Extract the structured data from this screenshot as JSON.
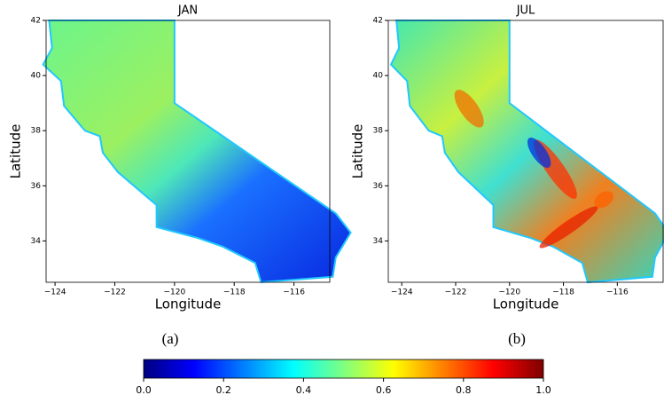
{
  "chart_data": [
    {
      "type": "map",
      "title": "JAN",
      "x_label": "Longitude",
      "y_label": "Latitude",
      "caption": "(a)",
      "xlim": [
        -124.3,
        -114.8
      ],
      "ylim": [
        32.5,
        42
      ],
      "xticks": [
        {
          "value": -124,
          "label": "−124"
        },
        {
          "value": -122,
          "label": "−122"
        },
        {
          "value": -120,
          "label": "−120"
        },
        {
          "value": -118,
          "label": "−118"
        },
        {
          "value": -116,
          "label": "−116"
        }
      ],
      "yticks": [
        34,
        36,
        38,
        40,
        42
      ]
    },
    {
      "type": "map",
      "title": "JUL",
      "x_label": "Longitude",
      "y_label": "Latitude",
      "caption": "(b)",
      "xlim": [
        -124.5,
        -114.3
      ],
      "ylim": [
        32.5,
        42
      ],
      "xticks": [
        {
          "value": -124,
          "label": "−124"
        },
        {
          "value": -122,
          "label": "−122"
        },
        {
          "value": -120,
          "label": "−120"
        },
        {
          "value": -118,
          "label": "−118"
        },
        {
          "value": -116,
          "label": "−116"
        }
      ],
      "yticks": [
        34,
        36,
        38,
        40,
        42
      ]
    },
    {
      "type": "colorbar",
      "clim": [
        0,
        1
      ],
      "colormap": [
        "#00007f",
        "#0000ff",
        "#007fff",
        "#00ffff",
        "#7fff7f",
        "#ffff00",
        "#ff7f00",
        "#ff0000",
        "#7f0000"
      ],
      "ticks": [
        {
          "value": 0,
          "label": "0.0"
        },
        0.2,
        0.4,
        0.6,
        0.8,
        {
          "value": 1,
          "label": "1.0"
        }
      ]
    }
  ]
}
